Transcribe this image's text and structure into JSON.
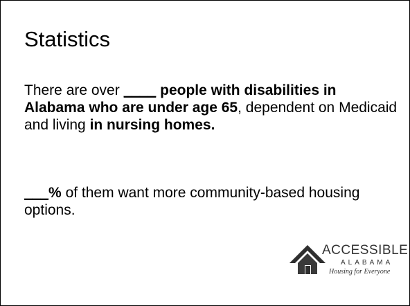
{
  "slide": {
    "title": "Statistics",
    "paragraph1": {
      "text_a": "There are over ",
      "blank": "____",
      "bold_a": " people with disabilities in Alabama who are under age 65",
      "text_b": ", dependent on Medicaid and living ",
      "bold_b": "in nursing homes."
    },
    "paragraph2": {
      "blank": "___",
      "bold_pct": "%",
      "text": " of them want more community-based housing options."
    }
  },
  "logo": {
    "line1": "ACCESSIBLE",
    "line2": "ALABAMA",
    "tagline": "Housing for Everyone",
    "icon": "house-icon"
  }
}
